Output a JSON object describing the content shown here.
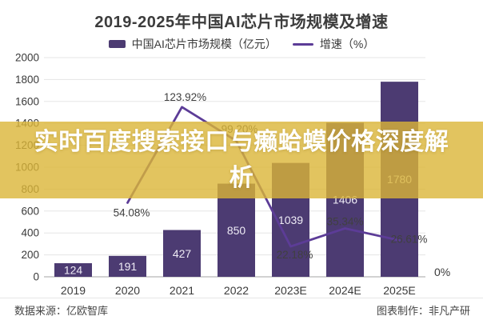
{
  "page": {
    "title": "2019-2025年中国AI芯片市场规模及增速"
  },
  "legend": {
    "bar_label": "中国AI芯片市场规模（亿元）",
    "line_label": "增速（%）"
  },
  "overlay_banner": {
    "text": "实时百度搜索接口与癞蛤蟆价格深度解析",
    "background_color": "#DBB537",
    "opacity": 0.8,
    "text_color": "#FFFFFF"
  },
  "footer": {
    "source_label": "数据来源：亿欧智库",
    "credit_label": "图表制作：非凡产研"
  },
  "colors": {
    "bar": "#4C3B72",
    "line": "#5C3C97",
    "grid": "#e5e5e5",
    "baseline": "#c3c3c3",
    "axis_text": "#3a3a3a",
    "bar_value_text": "#eeebf5",
    "percent_text": "#404040"
  },
  "chart_data": {
    "type": "bar",
    "subtype": "bar-line-combo",
    "title": "2019-2025年中国AI芯片市场规模及增速",
    "categories": [
      "2019",
      "2020",
      "2021",
      "2022",
      "2023E",
      "2024E",
      "2025E"
    ],
    "series": [
      {
        "name": "中国AI芯片市场规模（亿元）",
        "type": "bar",
        "axis": "left",
        "values": [
          124,
          191,
          427,
          850,
          1039,
          1406,
          1780
        ],
        "value_labels": [
          "124",
          "191",
          "427",
          "850",
          "1039",
          "1406",
          "1780"
        ]
      },
      {
        "name": "增速（%）",
        "type": "line",
        "axis": "right",
        "values": [
          null,
          54.08,
          123.92,
          99.2,
          22.18,
          35.34,
          26.61
        ],
        "value_labels": [
          null,
          "54.08%",
          "123.92%",
          "99.20%",
          "22.18%",
          "35.34%",
          "26.61%"
        ]
      }
    ],
    "y_left": {
      "min": 0,
      "max": 2000,
      "tick_step": 200
    },
    "y_right": {
      "min": 0,
      "max": 160,
      "visible_tick_labels": [
        "0%"
      ]
    },
    "grid": true,
    "legend_position": "top"
  }
}
